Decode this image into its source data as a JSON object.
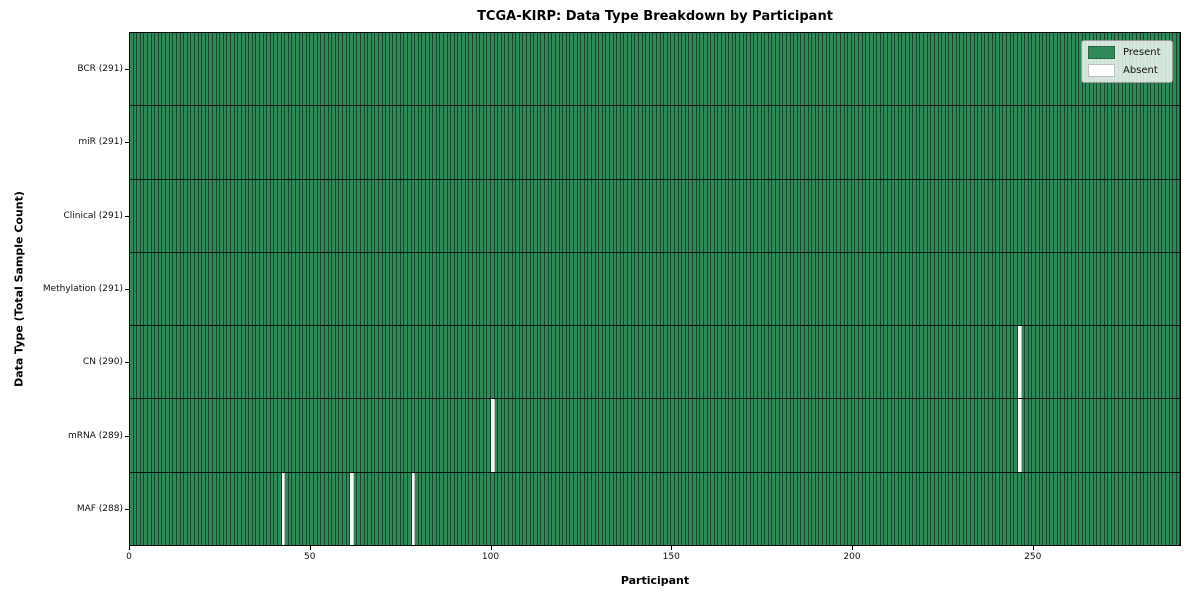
{
  "chart_data": {
    "type": "heatmap",
    "title": "TCGA-KIRP: Data Type Breakdown by Participant",
    "xlabel": "Participant",
    "ylabel": "Data Type (Total Sample Count)",
    "n_participants": 291,
    "xlim": [
      0,
      291
    ],
    "x_ticks": [
      0,
      50,
      100,
      150,
      200,
      250
    ],
    "grid": false,
    "legend_position": "upper right",
    "rows": [
      {
        "data_type": "BCR",
        "label": "BCR (291)",
        "present_count": 291,
        "absent_participants": []
      },
      {
        "data_type": "miR",
        "label": "miR (291)",
        "present_count": 291,
        "absent_participants": []
      },
      {
        "data_type": "Clinical",
        "label": "Clinical (291)",
        "present_count": 291,
        "absent_participants": []
      },
      {
        "data_type": "Methylation",
        "label": "Methylation (291)",
        "present_count": 291,
        "absent_participants": []
      },
      {
        "data_type": "CN",
        "label": "CN (290)",
        "present_count": 290,
        "absent_participants": [
          246
        ]
      },
      {
        "data_type": "mRNA",
        "label": "mRNA (289)",
        "present_count": 289,
        "absent_participants": [
          100,
          246
        ]
      },
      {
        "data_type": "MAF",
        "label": "MAF (288)",
        "present_count": 288,
        "absent_participants": [
          42,
          61,
          78
        ]
      }
    ],
    "legend": [
      {
        "label": "Present",
        "color": "#2e8b57"
      },
      {
        "label": "Absent",
        "color": "#ffffff"
      }
    ],
    "colors": {
      "present": "#2e8b57",
      "absent": "#ffffff",
      "cell_edge": "rgba(0,0,0,0.5)",
      "row_divider": "#000000",
      "spine": "#000000"
    }
  }
}
